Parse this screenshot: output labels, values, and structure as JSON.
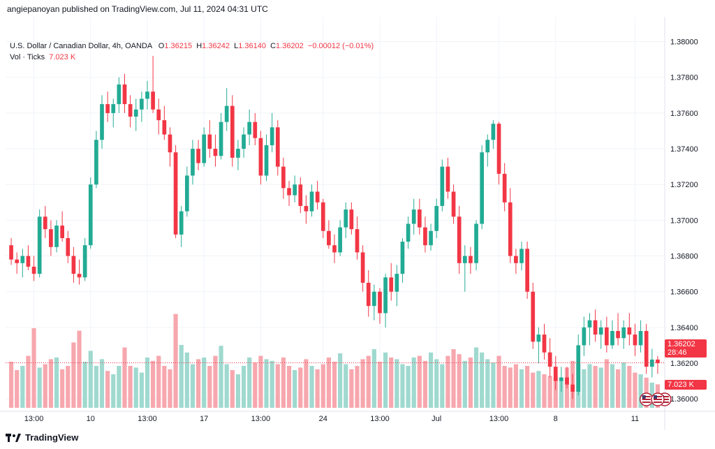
{
  "header": {
    "published_text": "angiepanoyan published on TradingView.com, Jul 11, 2024 04:31 UTC"
  },
  "legend": {
    "symbol": "U.S. Dollar / Canadian Dollar, 4h, OANDA",
    "open_label": "O",
    "open_value": "1.36215",
    "high_label": "H",
    "high_value": "1.36242",
    "low_label": "L",
    "low_value": "1.36140",
    "close_label": "C",
    "close_value": "1.36202",
    "change": "−0.00012 (−0.01%)",
    "vol_label": "Vol · Ticks",
    "vol_value": "7.023 K"
  },
  "badges": {
    "last_price": "1.36202",
    "countdown": "28:46",
    "volume": "7.023 K"
  },
  "colors": {
    "up": "#22ab94",
    "down": "#f23645",
    "vol_up": "#9fd9cf",
    "vol_down": "#f7a7ae",
    "grid": "#f0f3fa"
  },
  "icons": [
    "event-flag-icon-1",
    "event-flag-icon-2",
    "event-flag-icon-3"
  ],
  "footer": {
    "brand": "TradingView"
  },
  "chart_data": {
    "type": "candlestick",
    "title": "U.S. Dollar / Canadian Dollar, 4h, OANDA",
    "ylim": [
      1.3595,
      1.381
    ],
    "y_ticks": [
      "1.38000",
      "1.37800",
      "1.37600",
      "1.37400",
      "1.37200",
      "1.37000",
      "1.36800",
      "1.36600",
      "1.36400",
      "1.36200",
      "1.36000"
    ],
    "x_ticks": [
      "13:00",
      "10",
      "13:00",
      "17",
      "13:00",
      "24",
      "13:00",
      "Jul",
      "13:00",
      "8",
      "11"
    ],
    "last_price": 1.36202,
    "candles": [
      [
        1.3686,
        1.369,
        1.3675,
        1.3678
      ],
      [
        1.3678,
        1.3682,
        1.367,
        1.3676
      ],
      [
        1.3676,
        1.3684,
        1.3668,
        1.368
      ],
      [
        1.368,
        1.3686,
        1.3672,
        1.3674
      ],
      [
        1.3674,
        1.368,
        1.3666,
        1.367
      ],
      [
        1.367,
        1.3706,
        1.3668,
        1.3702
      ],
      [
        1.3702,
        1.3708,
        1.369,
        1.3695
      ],
      [
        1.3695,
        1.37,
        1.368,
        1.3685
      ],
      [
        1.3685,
        1.37,
        1.3682,
        1.3697
      ],
      [
        1.3697,
        1.3705,
        1.3688,
        1.369
      ],
      [
        1.369,
        1.3694,
        1.3676,
        1.368
      ],
      [
        1.368,
        1.3685,
        1.3665,
        1.367
      ],
      [
        1.367,
        1.3678,
        1.3664,
        1.3668
      ],
      [
        1.3668,
        1.369,
        1.3666,
        1.3686
      ],
      [
        1.3686,
        1.3724,
        1.3684,
        1.372
      ],
      [
        1.372,
        1.375,
        1.3718,
        1.3745
      ],
      [
        1.3745,
        1.377,
        1.374,
        1.3765
      ],
      [
        1.3765,
        1.3772,
        1.3755,
        1.376
      ],
      [
        1.376,
        1.3768,
        1.3752,
        1.3765
      ],
      [
        1.3765,
        1.378,
        1.376,
        1.3776
      ],
      [
        1.3776,
        1.3782,
        1.376,
        1.3765
      ],
      [
        1.3765,
        1.377,
        1.3752,
        1.3758
      ],
      [
        1.3758,
        1.3768,
        1.375,
        1.3762
      ],
      [
        1.3762,
        1.3772,
        1.3755,
        1.3768
      ],
      [
        1.3768,
        1.3778,
        1.3762,
        1.3772
      ],
      [
        1.3772,
        1.3792,
        1.376,
        1.3762
      ],
      [
        1.3762,
        1.3768,
        1.3748,
        1.3756
      ],
      [
        1.3756,
        1.3764,
        1.3745,
        1.3748
      ],
      [
        1.3748,
        1.3752,
        1.373,
        1.3738
      ],
      [
        1.3738,
        1.3742,
        1.369,
        1.3692
      ],
      [
        1.3692,
        1.3708,
        1.3685,
        1.3705
      ],
      [
        1.3705,
        1.373,
        1.3702,
        1.3725
      ],
      [
        1.3725,
        1.3745,
        1.372,
        1.374
      ],
      [
        1.374,
        1.3745,
        1.3728,
        1.3732
      ],
      [
        1.3732,
        1.3752,
        1.373,
        1.3748
      ],
      [
        1.3748,
        1.3756,
        1.3735,
        1.374
      ],
      [
        1.374,
        1.3748,
        1.373,
        1.3736
      ],
      [
        1.3736,
        1.376,
        1.3734,
        1.3755
      ],
      [
        1.3755,
        1.3774,
        1.375,
        1.3764
      ],
      [
        1.3764,
        1.377,
        1.373,
        1.3735
      ],
      [
        1.3735,
        1.3745,
        1.3728,
        1.374
      ],
      [
        1.374,
        1.3752,
        1.3735,
        1.3748
      ],
      [
        1.3748,
        1.3762,
        1.3742,
        1.3755
      ],
      [
        1.3755,
        1.376,
        1.3742,
        1.3746
      ],
      [
        1.3746,
        1.375,
        1.372,
        1.3725
      ],
      [
        1.3725,
        1.3748,
        1.3722,
        1.3742
      ],
      [
        1.3742,
        1.376,
        1.3738,
        1.3752
      ],
      [
        1.3752,
        1.3756,
        1.3725,
        1.373
      ],
      [
        1.373,
        1.3735,
        1.3712,
        1.3718
      ],
      [
        1.3718,
        1.3722,
        1.3708,
        1.3714
      ],
      [
        1.3714,
        1.3725,
        1.371,
        1.372
      ],
      [
        1.372,
        1.3724,
        1.3704,
        1.3708
      ],
      [
        1.3708,
        1.3714,
        1.3698,
        1.3705
      ],
      [
        1.3705,
        1.372,
        1.3702,
        1.3716
      ],
      [
        1.3716,
        1.3722,
        1.3706,
        1.371
      ],
      [
        1.371,
        1.3712,
        1.369,
        1.3694
      ],
      [
        1.3694,
        1.37,
        1.3684,
        1.3686
      ],
      [
        1.3686,
        1.3692,
        1.3676,
        1.3682
      ],
      [
        1.3682,
        1.37,
        1.368,
        1.3696
      ],
      [
        1.3696,
        1.371,
        1.369,
        1.3706
      ],
      [
        1.3706,
        1.371,
        1.3692,
        1.3695
      ],
      [
        1.3695,
        1.3702,
        1.3678,
        1.3682
      ],
      [
        1.3682,
        1.3686,
        1.366,
        1.3665
      ],
      [
        1.3665,
        1.3672,
        1.3646,
        1.3652
      ],
      [
        1.3652,
        1.3664,
        1.3644,
        1.366
      ],
      [
        1.366,
        1.3662,
        1.3642,
        1.3648
      ],
      [
        1.3648,
        1.367,
        1.364,
        1.3668
      ],
      [
        1.3668,
        1.3676,
        1.3655,
        1.366
      ],
      [
        1.366,
        1.3675,
        1.3652,
        1.367
      ],
      [
        1.367,
        1.369,
        1.3665,
        1.3688
      ],
      [
        1.3688,
        1.3702,
        1.3684,
        1.3698
      ],
      [
        1.3698,
        1.3712,
        1.3692,
        1.3706
      ],
      [
        1.3706,
        1.3712,
        1.3692,
        1.3696
      ],
      [
        1.3696,
        1.3702,
        1.3682,
        1.3686
      ],
      [
        1.3686,
        1.3698,
        1.3683,
        1.3694
      ],
      [
        1.3694,
        1.3712,
        1.369,
        1.3708
      ],
      [
        1.3708,
        1.3734,
        1.3705,
        1.373
      ],
      [
        1.373,
        1.3735,
        1.3712,
        1.3716
      ],
      [
        1.3716,
        1.372,
        1.3698,
        1.3702
      ],
      [
        1.3702,
        1.3708,
        1.367,
        1.3676
      ],
      [
        1.3676,
        1.3686,
        1.366,
        1.368
      ],
      [
        1.368,
        1.3685,
        1.367,
        1.3676
      ],
      [
        1.3676,
        1.37,
        1.3672,
        1.3698
      ],
      [
        1.3698,
        1.3742,
        1.3695,
        1.3738
      ],
      [
        1.3738,
        1.3748,
        1.373,
        1.3745
      ],
      [
        1.3745,
        1.3756,
        1.374,
        1.3754
      ],
      [
        1.3754,
        1.3755,
        1.372,
        1.3726
      ],
      [
        1.3726,
        1.3732,
        1.3705,
        1.371
      ],
      [
        1.371,
        1.3718,
        1.3676,
        1.368
      ],
      [
        1.368,
        1.3684,
        1.367,
        1.3676
      ],
      [
        1.3676,
        1.3688,
        1.3672,
        1.3684
      ],
      [
        1.3684,
        1.3688,
        1.3656,
        1.366
      ],
      [
        1.366,
        1.3665,
        1.3628,
        1.3632
      ],
      [
        1.3632,
        1.364,
        1.362,
        1.3636
      ],
      [
        1.3636,
        1.3642,
        1.3622,
        1.3626
      ],
      [
        1.3626,
        1.3634,
        1.3612,
        1.3618
      ],
      [
        1.3618,
        1.3624,
        1.3605,
        1.361
      ],
      [
        1.361,
        1.3618,
        1.3604,
        1.3612
      ],
      [
        1.3612,
        1.3618,
        1.3606,
        1.3608
      ],
      [
        1.3608,
        1.3614,
        1.36,
        1.3604
      ],
      [
        1.3604,
        1.3636,
        1.3602,
        1.363
      ],
      [
        1.363,
        1.3646,
        1.3624,
        1.364
      ],
      [
        1.364,
        1.3648,
        1.363,
        1.3644
      ],
      [
        1.3644,
        1.365,
        1.3632,
        1.3636
      ],
      [
        1.3636,
        1.3644,
        1.3628,
        1.364
      ],
      [
        1.364,
        1.3646,
        1.3626,
        1.363
      ],
      [
        1.363,
        1.3644,
        1.3628,
        1.3638
      ],
      [
        1.3638,
        1.3648,
        1.363,
        1.3634
      ],
      [
        1.3634,
        1.3644,
        1.3628,
        1.364
      ],
      [
        1.364,
        1.3648,
        1.363,
        1.3636
      ],
      [
        1.3636,
        1.3642,
        1.3624,
        1.363
      ],
      [
        1.363,
        1.3644,
        1.3626,
        1.3638
      ],
      [
        1.3638,
        1.3642,
        1.3614,
        1.3618
      ],
      [
        1.3618,
        1.3628,
        1.3612,
        1.3622
      ],
      [
        1.3622,
        1.3624,
        1.3614,
        1.362
      ]
    ],
    "volumes": [
      0.55,
      0.45,
      0.5,
      0.62,
      0.95,
      0.48,
      0.52,
      0.58,
      0.6,
      0.46,
      0.5,
      0.78,
      0.92,
      0.55,
      0.68,
      0.5,
      0.58,
      0.44,
      0.4,
      0.5,
      0.72,
      0.5,
      0.48,
      0.42,
      0.6,
      0.56,
      0.62,
      0.5,
      0.46,
      1.12,
      0.75,
      0.66,
      0.52,
      0.58,
      0.6,
      0.5,
      0.62,
      0.74,
      0.52,
      0.45,
      0.4,
      0.5,
      0.6,
      0.54,
      0.62,
      0.58,
      0.56,
      0.52,
      0.6,
      0.5,
      0.45,
      0.48,
      0.58,
      0.5,
      0.46,
      0.52,
      0.6,
      0.55,
      0.65,
      0.52,
      0.46,
      0.5,
      0.58,
      0.62,
      0.7,
      0.55,
      0.66,
      0.6,
      0.58,
      0.52,
      0.5,
      0.6,
      0.62,
      0.56,
      0.66,
      0.58,
      0.52,
      0.62,
      0.7,
      0.64,
      0.56,
      0.6,
      0.72,
      0.66,
      0.58,
      0.54,
      0.62,
      0.5,
      0.48,
      0.52,
      0.46,
      0.5,
      0.42,
      0.44,
      0.4,
      0.38,
      0.36,
      0.34,
      0.48,
      0.56,
      0.52,
      0.46,
      0.52,
      0.5,
      0.48,
      0.58,
      0.52,
      0.46,
      0.54,
      0.5,
      0.42,
      0.4,
      0.36,
      0.3,
      0.28
    ]
  }
}
